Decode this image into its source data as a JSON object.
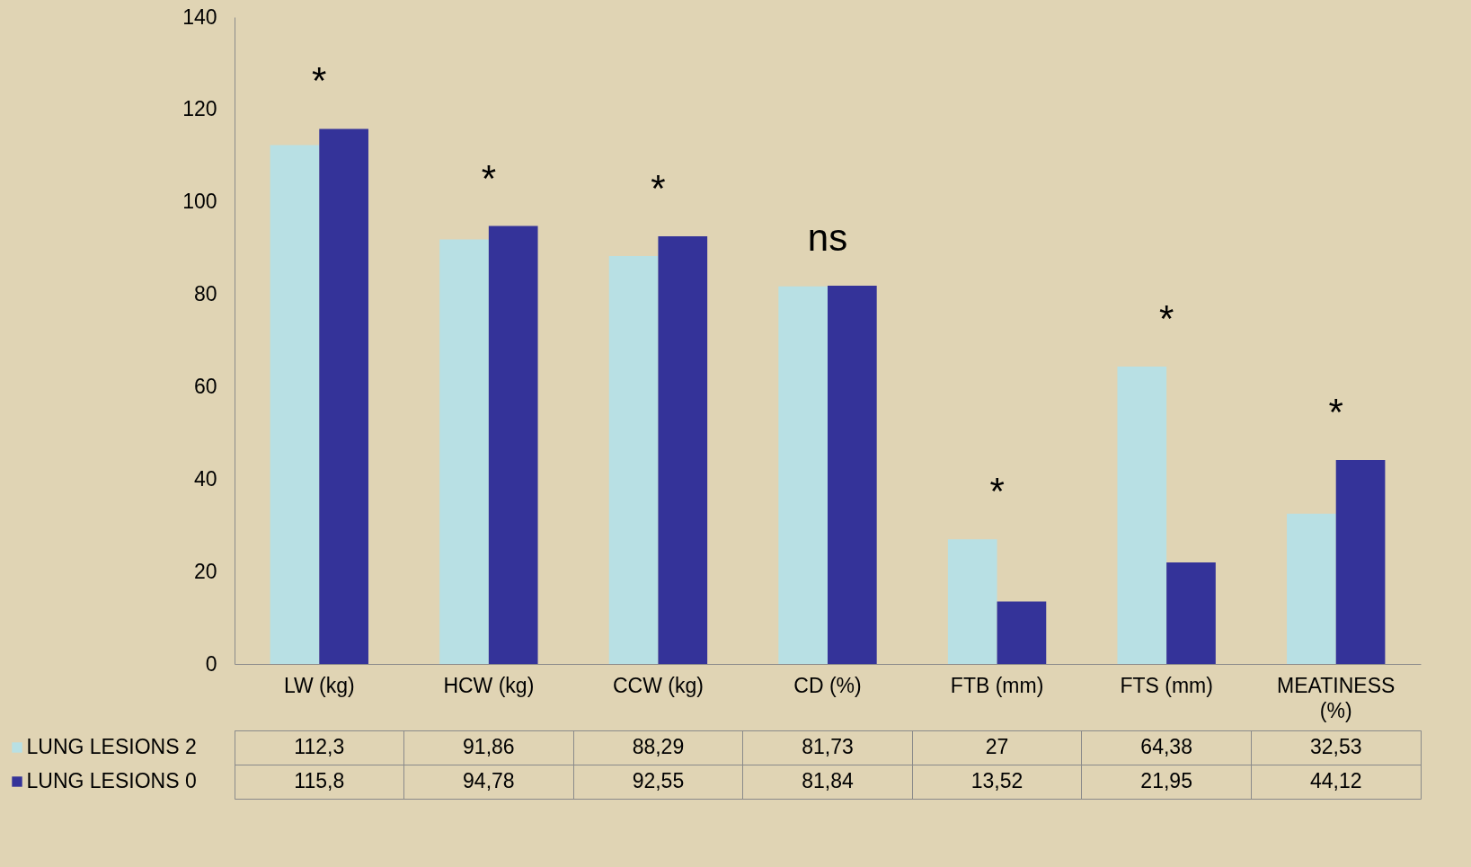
{
  "chart_data": {
    "type": "bar",
    "categories": [
      "LW (kg)",
      "HCW (kg)",
      "CCW (kg)",
      "CD (%)",
      "FTB (mm)",
      "FTS (mm)",
      "MEATINESS (%)"
    ],
    "series": [
      {
        "name": "LUNG LESIONS 2",
        "color": "#b8e0e4",
        "values": [
          112.3,
          91.86,
          88.29,
          81.73,
          27,
          64.38,
          32.53
        ],
        "value_labels": [
          "112,3",
          "91,86",
          "88,29",
          "81,73",
          "27",
          "64,38",
          "32,53"
        ]
      },
      {
        "name": "LUNG LESIONS 0",
        "color": "#343399",
        "values": [
          115.8,
          94.78,
          92.55,
          81.84,
          13.52,
          21.95,
          44.12
        ],
        "value_labels": [
          "115,8",
          "94,78",
          "92,55",
          "81,84",
          "13,52",
          "21,95",
          "44,12"
        ]
      }
    ],
    "ylim": [
      0,
      140
    ],
    "yticks": [
      0,
      20,
      40,
      60,
      80,
      100,
      120,
      140
    ],
    "grid": false,
    "legend": "bottom left",
    "annotations": [
      "*",
      "*",
      "*",
      "ns",
      "*",
      "*",
      "*"
    ]
  }
}
